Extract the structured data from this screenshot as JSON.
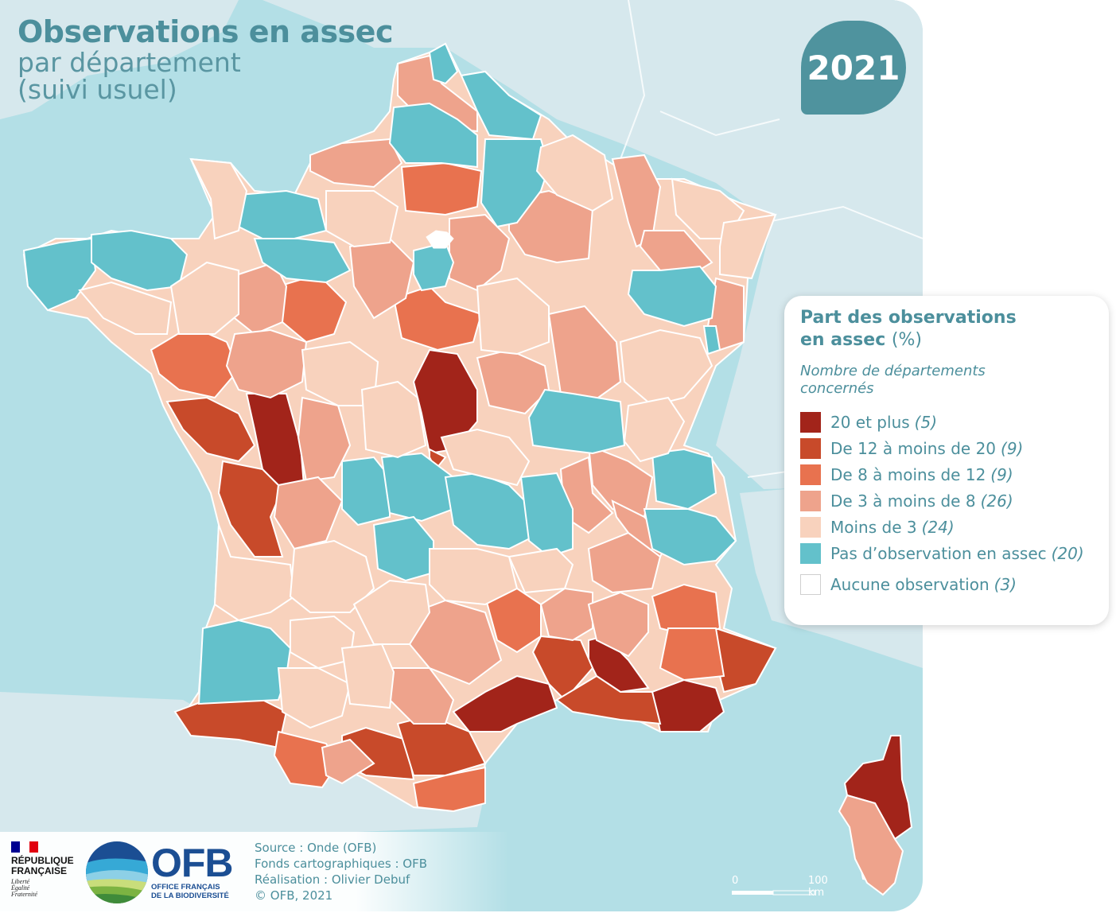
{
  "title": {
    "main": "Observations en assec",
    "line2": "par département",
    "line3": "(suivi usuel)"
  },
  "year": "2021",
  "legend": {
    "title_line1": "Part des observations",
    "title_line2": "en assec",
    "title_unit": "(%)",
    "subtitle_line1": "Nombre de départements",
    "subtitle_line2": "concernés",
    "classes": [
      {
        "label": "20 et plus",
        "count": "(5)",
        "color": "#a2241a"
      },
      {
        "label": "De 12 à moins de 20",
        "count": "(9)",
        "color": "#c84a2a"
      },
      {
        "label": "De 8 à moins de 12",
        "count": "(9)",
        "color": "#e8724f"
      },
      {
        "label": "De 3 à moins de 8",
        "count": "(26)",
        "color": "#eea38c"
      },
      {
        "label": "Moins de 3",
        "count": "(24)",
        "color": "#f8d2bd"
      },
      {
        "label": "Pas d’observation en assec",
        "count": "(20)",
        "color": "#63c1cb"
      },
      {
        "label": "Aucune observation",
        "count": "(3)",
        "color": "#ffffff"
      }
    ]
  },
  "colors": {
    "sea": "#b3dfe6",
    "land": "#d6e8ed",
    "border": "#ffffff",
    "accent": "#4f939e"
  },
  "footer": {
    "republique_line1": "RÉPUBLIQUE",
    "republique_line2": "FRANÇAISE",
    "motto1": "Liberté",
    "motto2": "Égalité",
    "motto3": "Fraternité",
    "ofb": "OFB",
    "ofb_full1": "OFFICE FRANÇAIS",
    "ofb_full2": "DE LA BIODIVERSITÉ",
    "source": "Source : Onde (OFB)",
    "basemap": "Fonds cartographiques : OFB",
    "author": "Réalisation : Olivier Debuf",
    "copyright": "© OFB, 2021"
  },
  "scale": {
    "start": "0",
    "end": "100 km"
  }
}
